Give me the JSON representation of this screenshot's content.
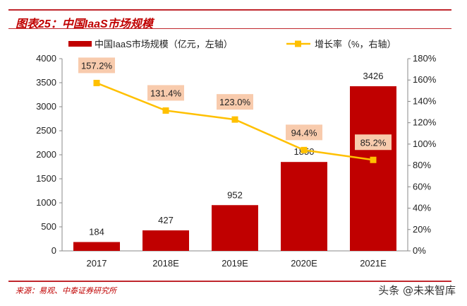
{
  "title": "图表25：中国IaaS市场规模",
  "source": "来源：易观、中泰证券研究所",
  "watermark": "头条 @未来智库",
  "colors": {
    "bar": "#c00000",
    "line": "#ffc000",
    "label_box": "#f8cbad"
  },
  "chart_data": {
    "type": "bar+line",
    "categories": [
      "2017",
      "2018E",
      "2019E",
      "2020E",
      "2021E"
    ],
    "series": [
      {
        "name": "中国IaaS市场规模（亿元，左轴）",
        "type": "bar",
        "axis": "left",
        "values": [
          184,
          427,
          952,
          1850,
          3426
        ],
        "labels": [
          "184",
          "427",
          "952",
          "1850",
          "3426"
        ]
      },
      {
        "name": "增长率（%，右轴）",
        "type": "line",
        "axis": "right",
        "values": [
          157.2,
          131.4,
          123.0,
          94.4,
          85.2
        ],
        "labels": [
          "157.2%",
          "131.4%",
          "123.0%",
          "94.4%",
          "85.2%"
        ]
      }
    ],
    "ylim_left": [
      0,
      4000
    ],
    "yticks_left": [
      "0",
      "500",
      "1000",
      "1500",
      "2000",
      "2500",
      "3000",
      "3500",
      "4000"
    ],
    "ylim_right": [
      0,
      180
    ],
    "yticks_right": [
      "0%",
      "20%",
      "40%",
      "60%",
      "80%",
      "100%",
      "120%",
      "140%",
      "160%",
      "180%"
    ],
    "legend": "top",
    "grid": false
  }
}
